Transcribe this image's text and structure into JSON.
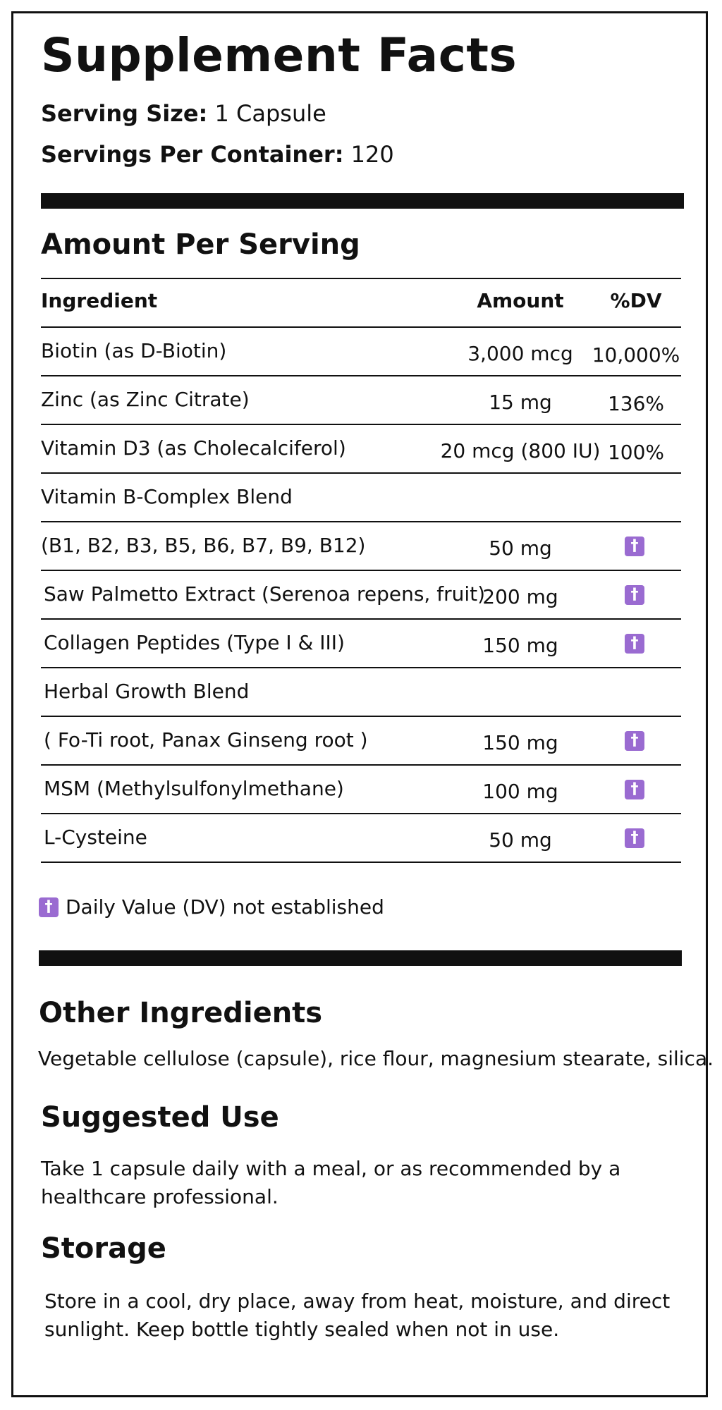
{
  "title": "Supplement Facts",
  "serving_size": {
    "label": "Serving Size:",
    "value": "1 Capsule"
  },
  "servings_per_container": {
    "label": "Servings Per Container:",
    "value": "120"
  },
  "amount_heading": "Amount Per Serving",
  "table": {
    "headers": {
      "ingredient": "Ingredient",
      "amount": "Amount",
      "dv": "%DV"
    },
    "rows": [
      {
        "ingredient": "Biotin (as D-Biotin)",
        "amount": "3,000 mcg",
        "dv": "10,000%"
      },
      {
        "ingredient": "Zinc (as Zinc Citrate)",
        "amount": "15 mg",
        "dv": "136%"
      },
      {
        "ingredient": "Vitamin D3 (as Cholecalciferol)",
        "amount": "20 mcg (800 IU)",
        "dv": "100%"
      },
      {
        "ingredient": "Vitamin B-Complex Blend",
        "amount": "",
        "dv": ""
      },
      {
        "ingredient": "(B1, B2, B3, B5, B6, B7, B9, B12)",
        "amount": "50 mg",
        "dv": "†"
      },
      {
        "ingredient": "Saw Palmetto Extract (Serenoa repens, fruit)",
        "amount": "200 mg",
        "dv": "†"
      },
      {
        "ingredient": "Collagen Peptides (Type I & III)",
        "amount": "150 mg",
        "dv": "†"
      },
      {
        "ingredient": "Herbal Growth Blend",
        "amount": "",
        "dv": ""
      },
      {
        "ingredient": "( Fo-Ti root, Panax Ginseng root )",
        "amount": "150 mg",
        "dv": "†"
      },
      {
        "ingredient": "MSM (Methylsulfonylmethane)",
        "amount": "100 mg",
        "dv": "†"
      },
      {
        "ingredient": "L-Cysteine",
        "amount": "50 mg",
        "dv": "†"
      }
    ]
  },
  "footnote": {
    "symbol": "†",
    "text": "Daily Value (DV) not established"
  },
  "other_ingredients": {
    "heading": "Other Ingredients",
    "text": "Vegetable cellulose (capsule), rice flour, magnesium stearate, silica."
  },
  "suggested_use": {
    "heading": "Suggested Use",
    "line1": "Take 1 capsule daily with a meal, or as recommended by a",
    "line2": "healthcare professional."
  },
  "storage": {
    "heading": "Storage",
    "line1": "Store in a cool, dry place, away from heat, moisture, and direct",
    "line2": "sunlight. Keep bottle tightly sealed when not in use."
  },
  "colors": {
    "dagger_badge": "#9a6bd1",
    "ink": "#111111",
    "background": "#ffffff"
  }
}
